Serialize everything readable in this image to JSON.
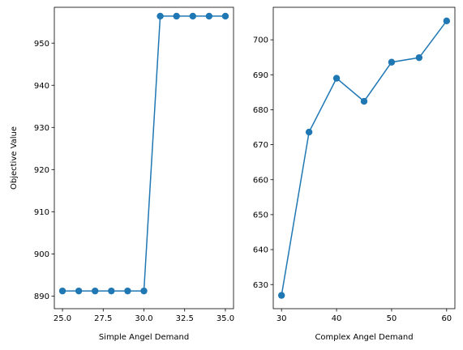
{
  "chart_data": [
    {
      "type": "line",
      "title": "",
      "xlabel": "Simple Angel Demand",
      "ylabel": "Objective Value",
      "xlim": [
        24.5,
        35.5
      ],
      "ylim": [
        887,
        958.5
      ],
      "xticks": [
        25.0,
        27.5,
        30.0,
        32.5,
        35.0
      ],
      "xtick_labels": [
        "25.0",
        "27.5",
        "30.0",
        "32.5",
        "35.0"
      ],
      "yticks": [
        890,
        900,
        910,
        920,
        930,
        940,
        950
      ],
      "ytick_labels": [
        "890",
        "900",
        "910",
        "920",
        "930",
        "940",
        "950"
      ],
      "grid": false,
      "series": [
        {
          "color": "#1f77b4",
          "marker": "circle",
          "x": [
            25,
            26,
            27,
            28,
            29,
            30,
            31,
            32,
            33,
            34,
            35
          ],
          "y": [
            891.2,
            891.2,
            891.2,
            891.2,
            891.2,
            891.2,
            956.4,
            956.4,
            956.4,
            956.4,
            956.4
          ]
        }
      ]
    },
    {
      "type": "line",
      "title": "",
      "xlabel": "Complex Angel Demand",
      "ylabel": "",
      "xlim": [
        28.5,
        61.5
      ],
      "ylim": [
        623.1,
        709.3
      ],
      "xticks": [
        30,
        40,
        50,
        60
      ],
      "xtick_labels": [
        "30",
        "40",
        "50",
        "60"
      ],
      "yticks": [
        630,
        640,
        650,
        660,
        670,
        680,
        690,
        700
      ],
      "ytick_labels": [
        "630",
        "640",
        "650",
        "660",
        "670",
        "680",
        "690",
        "700"
      ],
      "grid": false,
      "series": [
        {
          "color": "#1f77b4",
          "marker": "circle",
          "x": [
            30,
            35,
            40,
            45,
            50,
            55,
            60
          ],
          "y": [
            626.9,
            673.6,
            689.0,
            682.4,
            693.6,
            694.9,
            705.4
          ]
        }
      ]
    }
  ]
}
